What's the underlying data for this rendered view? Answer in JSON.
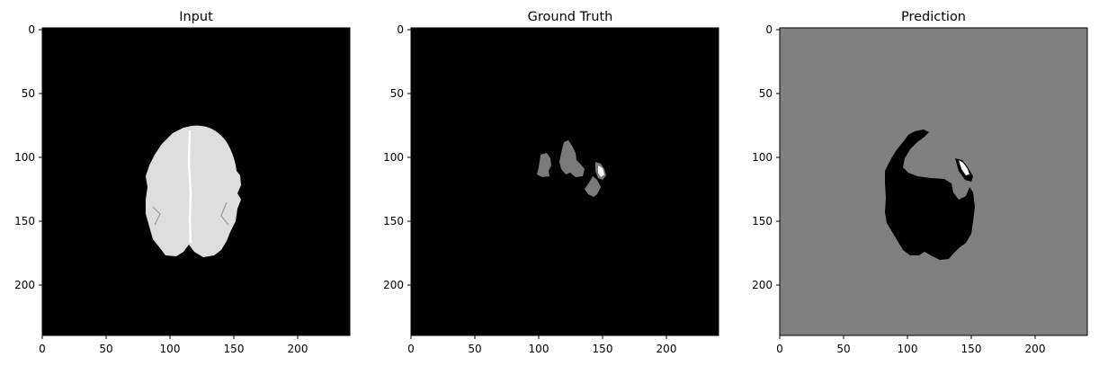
{
  "figure": {
    "panels": [
      {
        "title": "Input",
        "background": "#000000",
        "x_ticks": [
          "0",
          "50",
          "100",
          "150",
          "200"
        ],
        "y_ticks": [
          "0",
          "50",
          "100",
          "150",
          "200"
        ]
      },
      {
        "title": "Ground Truth",
        "background": "#000000",
        "x_ticks": [
          "0",
          "50",
          "100",
          "150",
          "200"
        ],
        "y_ticks": [
          "0",
          "50",
          "100",
          "150",
          "200"
        ]
      },
      {
        "title": "Prediction",
        "background": "#808080",
        "x_ticks": [
          "0",
          "50",
          "100",
          "150",
          "200"
        ],
        "y_ticks": [
          "0",
          "50",
          "100",
          "150",
          "200"
        ]
      }
    ]
  },
  "colors": {
    "brain": "#e6e6e6",
    "label_gray": "#7a7a7a",
    "label_white": "#ffffff",
    "pred_background": "#808080",
    "pred_region": "#000000"
  }
}
